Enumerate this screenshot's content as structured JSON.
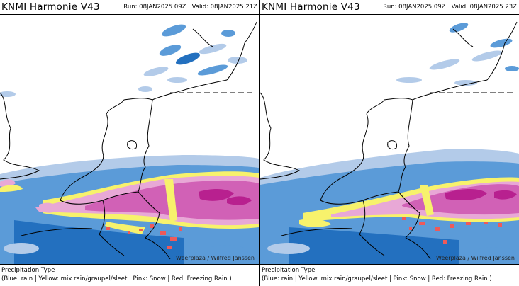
{
  "panels": [
    {
      "title": "KNMI Harmonie V43",
      "run_label": "Run:",
      "run_value": "08JAN2025 09Z",
      "valid_label": "Valid:",
      "valid_value": "08JAN2025 21Z",
      "credit": "Weerplaza / Wilfred Janssen",
      "legend_title": "Precipitation Type",
      "legend_text": "(Blue: rain | Yellow: mix rain/graupel/sleet | Pink: Snow | Red: Freezing Rain )"
    },
    {
      "title": "KNMI Harmonie V43",
      "run_label": "Run:",
      "run_value": "08JAN2025 09Z",
      "valid_label": "Valid:",
      "valid_value": "08JAN2025 23Z",
      "credit": "Weerplaza / Wilfred Janssen",
      "legend_title": "Precipitation Type",
      "legend_text": "(Blue: rain | Yellow: mix rain/graupel/sleet | Pink: Snow | Red: Freezing Rain )"
    }
  ],
  "colors": {
    "rain_light": "#b3cbe9",
    "rain": "#5b9bd8",
    "rain_heavy": "#2370bf",
    "mix": "#f7f26c",
    "snow_light": "#e8a8d6",
    "snow": "#d161b6",
    "snow_heavy": "#b8208f",
    "freezing_rain": "#ee5a5a",
    "borders": "#000000"
  }
}
